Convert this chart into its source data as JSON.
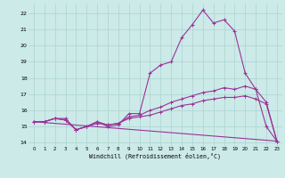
{
  "xlabel": "Windchill (Refroidissement éolien,°C)",
  "bg_color": "#cceae8",
  "grid_color": "#aad4d0",
  "line_color": "#993399",
  "xlim": [
    -0.5,
    23.5
  ],
  "ylim": [
    13.8,
    22.6
  ],
  "yticks": [
    14,
    15,
    16,
    17,
    18,
    19,
    20,
    21,
    22
  ],
  "xticks": [
    0,
    1,
    2,
    3,
    4,
    5,
    6,
    7,
    8,
    9,
    10,
    11,
    12,
    13,
    14,
    15,
    16,
    17,
    18,
    19,
    20,
    21,
    22,
    23
  ],
  "series1_x": [
    0,
    1,
    2,
    3,
    4,
    5,
    6,
    7,
    8,
    9,
    10,
    11,
    12,
    13,
    14,
    15,
    16,
    17,
    18,
    19,
    20,
    21,
    22,
    23
  ],
  "series1_y": [
    15.3,
    15.3,
    15.5,
    15.5,
    14.8,
    15.0,
    15.3,
    15.0,
    15.1,
    15.8,
    15.8,
    18.3,
    18.8,
    19.0,
    20.5,
    21.3,
    22.2,
    21.4,
    21.6,
    20.9,
    18.3,
    17.3,
    15.0,
    14.1
  ],
  "series2_x": [
    0,
    1,
    2,
    3,
    4,
    5,
    6,
    7,
    8,
    9,
    10,
    11,
    12,
    13,
    14,
    15,
    16,
    17,
    18,
    19,
    20,
    21,
    22,
    23
  ],
  "series2_y": [
    15.3,
    15.3,
    15.5,
    15.4,
    14.8,
    15.0,
    15.3,
    15.1,
    15.2,
    15.6,
    15.7,
    16.0,
    16.2,
    16.5,
    16.7,
    16.9,
    17.1,
    17.2,
    17.4,
    17.3,
    17.5,
    17.3,
    16.5,
    14.1
  ],
  "series3_x": [
    0,
    1,
    2,
    3,
    4,
    5,
    6,
    7,
    8,
    9,
    10,
    11,
    12,
    13,
    14,
    15,
    16,
    17,
    18,
    19,
    20,
    21,
    22,
    23
  ],
  "series3_y": [
    15.3,
    15.3,
    15.5,
    15.4,
    14.8,
    15.0,
    15.2,
    15.1,
    15.2,
    15.5,
    15.6,
    15.7,
    15.9,
    16.1,
    16.3,
    16.4,
    16.6,
    16.7,
    16.8,
    16.8,
    16.9,
    16.7,
    16.4,
    14.1
  ],
  "series4_x": [
    0,
    23
  ],
  "series4_y": [
    15.3,
    14.1
  ]
}
